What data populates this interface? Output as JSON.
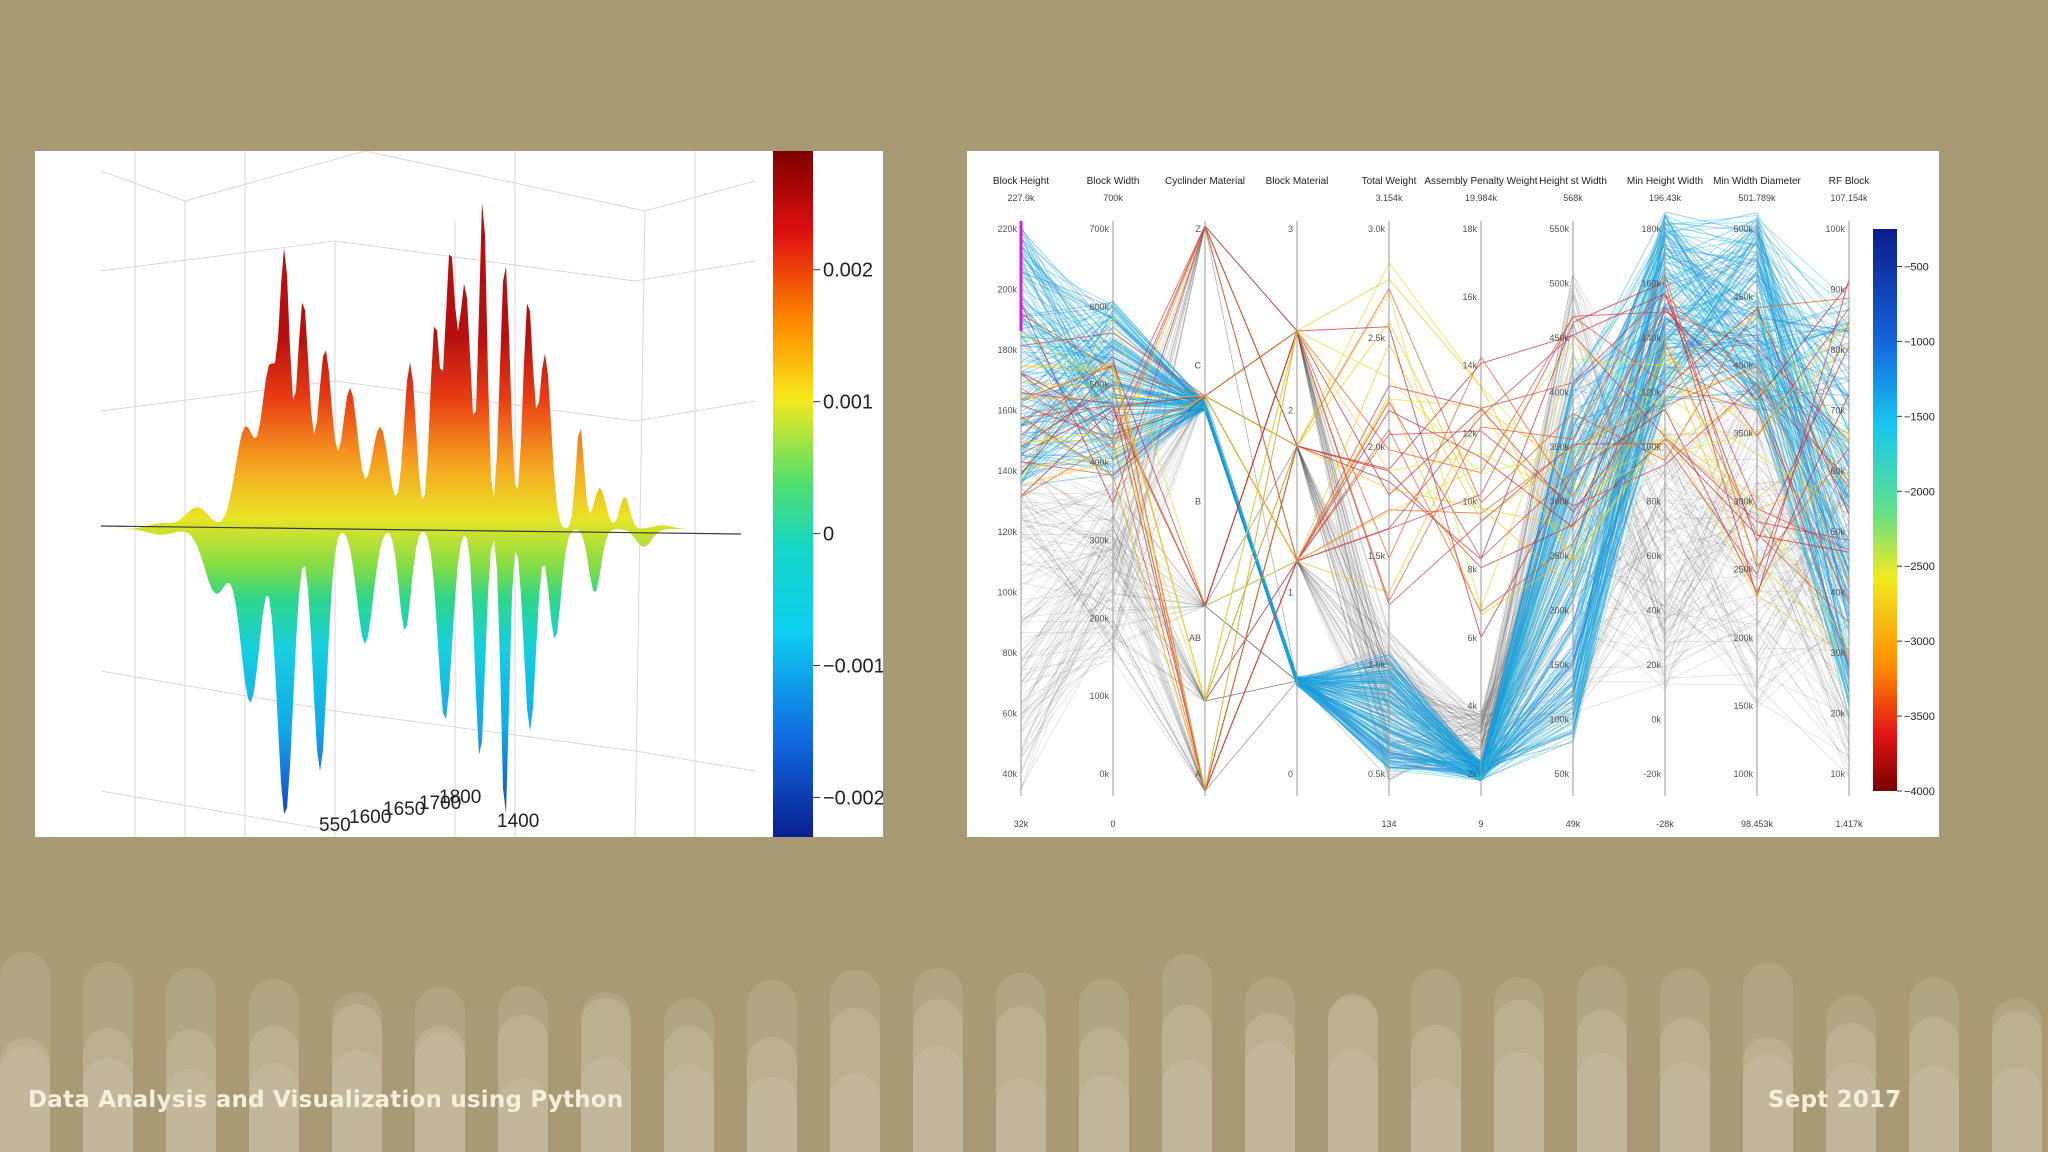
{
  "slide": {
    "footer_left": "Data Analysis and Visualization using Python",
    "footer_right": "Sept 2017",
    "background_color": "#a89a74"
  },
  "chart_data": [
    {
      "type": "surface3d",
      "colorbar": {
        "ticks": [
          "0.002",
          "0.001",
          "0",
          "−0.001",
          "−0.002"
        ],
        "tick_values": [
          0.002,
          0.001,
          0,
          -0.001,
          -0.002
        ],
        "range": [
          -0.0023,
          0.0029
        ],
        "colormap": "jet"
      },
      "axis_ticks": [
        "550",
        "1600",
        "1650",
        "1700",
        "1800",
        "1400"
      ],
      "surface_range": [
        -0.0023,
        0.0027
      ]
    },
    {
      "type": "parallel_coordinates",
      "axes": [
        {
          "name": "Block Height",
          "max": "227.9k",
          "min": "32k",
          "ticks": [
            "220k",
            "200k",
            "180k",
            "160k",
            "140k",
            "120k",
            "100k",
            "80k",
            "60k",
            "40k"
          ]
        },
        {
          "name": "Block Width",
          "max": "700k",
          "min": "0",
          "ticks": [
            "700k",
            "600k",
            "500k",
            "400k",
            "300k",
            "200k",
            "100k",
            "0k"
          ]
        },
        {
          "name": "Cyclinder Material",
          "max": "",
          "min": "",
          "ticks": [
            "Z",
            "C",
            "B",
            "AB",
            "A"
          ]
        },
        {
          "name": "Block Material",
          "max": "",
          "min": "",
          "ticks": [
            "3",
            "2",
            "1",
            "0"
          ]
        },
        {
          "name": "Total Weight",
          "max": "3.154k",
          "min": "134",
          "ticks": [
            "3.0k",
            "2.5k",
            "2.0k",
            "1.5k",
            "1.0k",
            "0.5k"
          ]
        },
        {
          "name": "Assembly Penalty Weight",
          "max": "19.984k",
          "min": "9",
          "ticks": [
            "18k",
            "16k",
            "14k",
            "12k",
            "10k",
            "8k",
            "6k",
            "4k",
            "2k"
          ]
        },
        {
          "name": "Height st Width",
          "max": "568k",
          "min": "49k",
          "ticks": [
            "550k",
            "500k",
            "450k",
            "400k",
            "350k",
            "300k",
            "250k",
            "200k",
            "150k",
            "100k",
            "50k"
          ]
        },
        {
          "name": "Min Height Width",
          "max": "196.43k",
          "min": "-28k",
          "ticks": [
            "180k",
            "160k",
            "140k",
            "120k",
            "100k",
            "80k",
            "60k",
            "40k",
            "20k",
            "0k",
            "-20k"
          ]
        },
        {
          "name": "Min Width Diameter",
          "max": "501.789k",
          "min": "98.453k",
          "ticks": [
            "500k",
            "450k",
            "400k",
            "350k",
            "300k",
            "250k",
            "200k",
            "150k",
            "100k"
          ]
        },
        {
          "name": "RF Block",
          "max": "107.154k",
          "min": "1.417k",
          "ticks": [
            "100k",
            "90k",
            "80k",
            "70k",
            "60k",
            "50k",
            "40k",
            "30k",
            "20k",
            "10k"
          ]
        }
      ],
      "colorbar": {
        "ticks": [
          "−500",
          "−1000",
          "−1500",
          "−2000",
          "−2500",
          "−3000",
          "−3500",
          "−4000"
        ],
        "tick_values": [
          -500,
          -1000,
          -1500,
          -2000,
          -2500,
          -3000,
          -3500,
          -4000
        ],
        "colormap": "jet"
      },
      "line_colors": {
        "grey": "#5a5a5a",
        "blue": "#1f8fd6",
        "cyan": "#22c7e0",
        "red": "#c8282d"
      }
    }
  ]
}
